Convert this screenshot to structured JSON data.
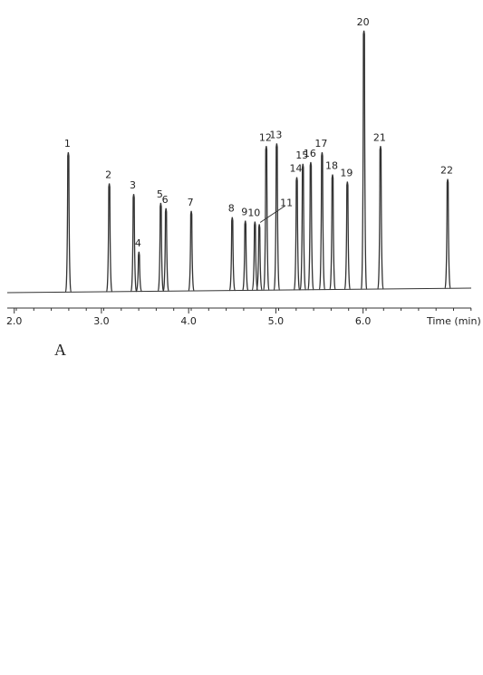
{
  "chart_data": {
    "type": "chromatogram",
    "x_label": "Time (min)",
    "panel_label": "A",
    "color": "#333333",
    "xlim": [
      1.92,
      7.24
    ],
    "xticks": [
      {
        "value": 2,
        "label": "2.0"
      },
      {
        "value": 3,
        "label": "3.0"
      },
      {
        "value": 4,
        "label": "4.0"
      },
      {
        "value": 5,
        "label": "5.0"
      },
      {
        "value": 6,
        "label": "6.0"
      }
    ],
    "ylim": [
      0,
      300
    ],
    "peaks": [
      {
        "label": "1",
        "x": 2.62,
        "height": 157
      },
      {
        "label": "2",
        "x": 3.09,
        "height": 122
      },
      {
        "label": "3",
        "x": 3.37,
        "height": 110
      },
      {
        "label": "4",
        "x": 3.43,
        "height": 45
      },
      {
        "label": "5",
        "x": 3.68,
        "height": 100
      },
      {
        "label": "6",
        "x": 3.74,
        "height": 94
      },
      {
        "label": "7",
        "x": 4.03,
        "height": 91
      },
      {
        "label": "8",
        "x": 4.5,
        "height": 84
      },
      {
        "label": "9",
        "x": 4.65,
        "height": 80
      },
      {
        "label": "10",
        "x": 4.76,
        "height": 79
      },
      {
        "label": "11",
        "x": 4.81,
        "height": 76
      },
      {
        "label": "12",
        "x": 4.89,
        "height": 164
      },
      {
        "label": "13",
        "x": 5.01,
        "height": 167
      },
      {
        "label": "14",
        "x": 5.24,
        "height": 129
      },
      {
        "label": "15",
        "x": 5.31,
        "height": 144
      },
      {
        "label": "16",
        "x": 5.4,
        "height": 146
      },
      {
        "label": "17",
        "x": 5.53,
        "height": 157
      },
      {
        "label": "18",
        "x": 5.65,
        "height": 132
      },
      {
        "label": "19",
        "x": 5.82,
        "height": 124
      },
      {
        "label": "20",
        "x": 6.01,
        "height": 294
      },
      {
        "label": "21",
        "x": 6.2,
        "height": 164
      },
      {
        "label": "22",
        "x": 6.97,
        "height": 127
      }
    ]
  }
}
